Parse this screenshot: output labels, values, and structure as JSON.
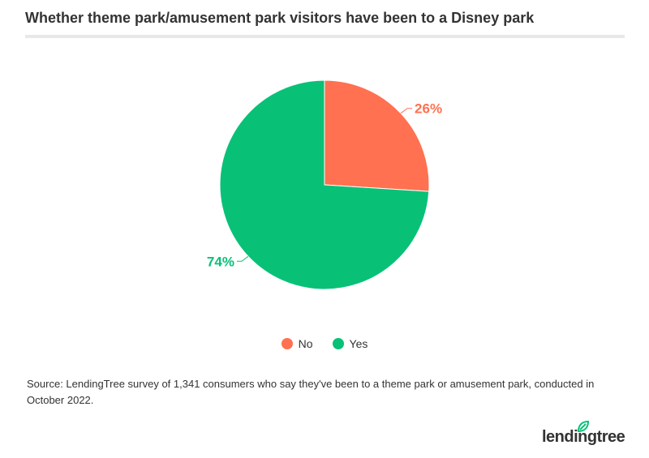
{
  "title": "Whether theme park/amusement park visitors have been to a Disney park",
  "source": "Source: LendingTree survey of 1,341 consumers who say they've been to a theme park or amusement park, conducted in October 2022.",
  "brand": {
    "name": "lendingtree",
    "leaf_color": "#08c177"
  },
  "chart_data": {
    "type": "pie",
    "title": "Whether theme park/amusement park visitors have been to a Disney park",
    "slices": [
      {
        "name": "No",
        "value": 26,
        "label": "26%",
        "color": "#ff7150"
      },
      {
        "name": "Yes",
        "value": 74,
        "label": "74%",
        "color": "#08c177"
      }
    ],
    "legend_position": "bottom-center",
    "start_angle": "top, clockwise"
  }
}
